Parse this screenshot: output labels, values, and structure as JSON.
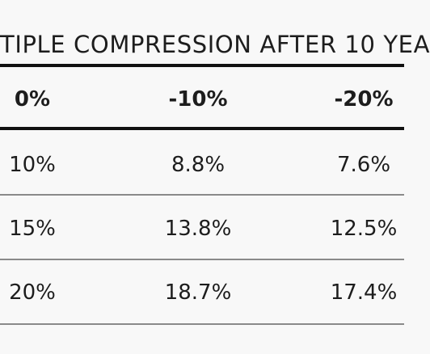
{
  "table": {
    "title": "TIPLE COMPRESSION AFTER 10 YEA",
    "header": [
      "0%",
      "-10%",
      "-20%"
    ],
    "rows": [
      [
        "10%",
        "8.8%",
        "7.6%"
      ],
      [
        "15%",
        "13.8%",
        "12.5%"
      ],
      [
        "20%",
        "18.7%",
        "17.4%"
      ]
    ]
  }
}
